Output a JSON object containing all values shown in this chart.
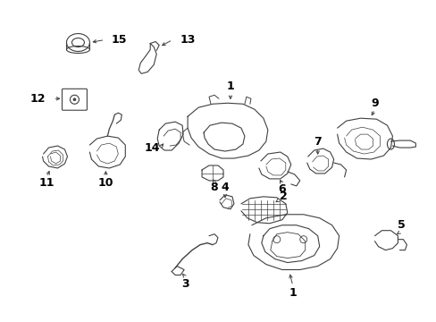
{
  "bg_color": "#ffffff",
  "line_color": "#404040",
  "label_color": "#000000",
  "figsize": [
    4.89,
    3.6
  ],
  "dpi": 100,
  "xlim": [
    0,
    489
  ],
  "ylim": [
    0,
    360
  ]
}
